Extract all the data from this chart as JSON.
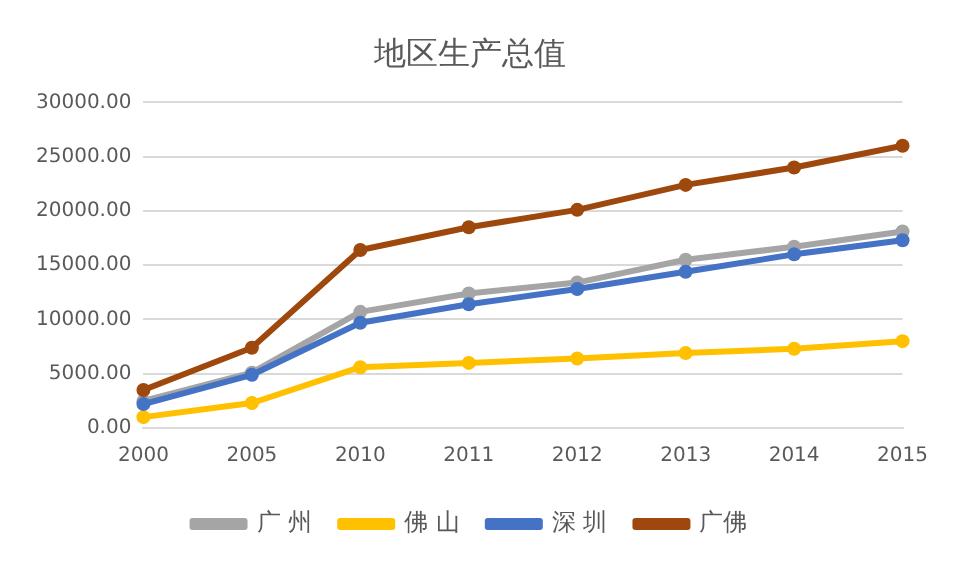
{
  "chart_data": {
    "type": "line",
    "title": "地区生产总值",
    "categories": [
      "2000",
      "2005",
      "2010",
      "2011",
      "2012",
      "2013",
      "2014",
      "2015"
    ],
    "series": [
      {
        "name": "广 州",
        "color": "#a5a5a5",
        "values": [
          2500,
          5100,
          10700,
          12400,
          13400,
          15500,
          16700,
          18100
        ]
      },
      {
        "name": "佛 山",
        "color": "#ffc000",
        "values": [
          1000,
          2300,
          5600,
          6000,
          6400,
          6900,
          7300,
          8000
        ]
      },
      {
        "name": "深 圳",
        "color": "#4472c4",
        "values": [
          2200,
          4900,
          9700,
          11400,
          12800,
          14400,
          16000,
          17300
        ]
      },
      {
        "name": "广佛",
        "color": "#9e480e",
        "values": [
          3500,
          7400,
          16400,
          18500,
          20100,
          22400,
          24000,
          26000
        ]
      }
    ],
    "ylim": [
      0,
      30000
    ],
    "yticks": [
      {
        "value": 0,
        "label": "0.00"
      },
      {
        "value": 5000,
        "label": "5000.00"
      },
      {
        "value": 10000,
        "label": "10000.00"
      },
      {
        "value": 15000,
        "label": "15000.00"
      },
      {
        "value": 20000,
        "label": "20000.00"
      },
      {
        "value": 25000,
        "label": "25000.00"
      },
      {
        "value": 30000,
        "label": "30000.00"
      }
    ],
    "grid": "y",
    "legend": "bottom",
    "marker": "circle",
    "line_style": "solid"
  }
}
